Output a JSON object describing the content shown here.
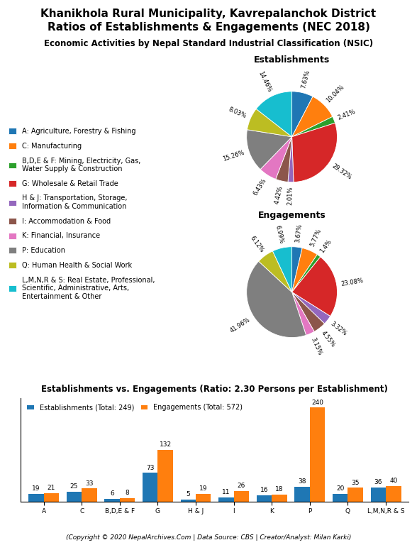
{
  "title": "Khanikhola Rural Municipality, Kavrepalanchok District\nRatios of Establishments & Engagements (NEC 2018)",
  "subtitle": "Economic Activities by Nepal Standard Industrial Classification (NSIC)",
  "annotations": [
    "(Copyright © 2020 NepalArchives.Com | Data Source: CBS | Creator/Analyst: Milan Karki)"
  ],
  "chart_data": [
    {
      "type": "pie",
      "title": "Establishments",
      "categories": [
        "A: Agriculture, Forestry & Fishing",
        "C: Manufacturing",
        "B,D,E & F: Mining, Electricity, Gas,\nWater Supply & Construction",
        "G: Wholesale & Retail Trade",
        "H & J: Transportation, Storage,\nInformation & Communication",
        "I: Accommodation & Food",
        "K: Financial, Insurance",
        "P: Education",
        "Q: Human Health & Social Work",
        "L,M,N,R & S: Real Estate, Professional,\nScientific, Administrative, Arts,\nEntertainment & Other"
      ],
      "values": [
        7.63,
        10.04,
        2.41,
        29.32,
        2.01,
        4.42,
        6.43,
        15.26,
        8.03,
        14.46
      ],
      "value_labels": [
        "7.63%",
        "10.04%",
        "2.41%",
        "29.32%",
        "2.01%",
        "4.42%",
        "6.43%",
        "15.26%",
        "8.03%",
        "14.46%"
      ],
      "data_labels": true,
      "legend": "center left"
    },
    {
      "type": "pie",
      "title": "Engagements",
      "categories": [
        "A: Agriculture, Forestry & Fishing",
        "C: Manufacturing",
        "B,D,E & F: Mining, Electricity, Gas,\nWater Supply & Construction",
        "G: Wholesale & Retail Trade",
        "H & J: Transportation, Storage,\nInformation & Communication",
        "I: Accommodation & Food",
        "K: Financial, Insurance",
        "P: Education",
        "Q: Human Health & Social Work",
        "L,M,N,R & S: Real Estate, Professional,\nScientific, Administrative, Arts,\nEntertainment & Other"
      ],
      "values": [
        3.67,
        5.77,
        1.4,
        23.08,
        3.32,
        4.55,
        3.15,
        41.96,
        6.12,
        6.99
      ],
      "value_labels": [
        "3.67%",
        "5.77%",
        "1.4%",
        "23.08%",
        "3.32%",
        "4.55%",
        "3.15%",
        "41.96%",
        "6.12%",
        "6.99%"
      ],
      "data_labels": true
    },
    {
      "type": "bar",
      "title": "Establishments vs. Engagements (Ratio: 2.30 Persons per Establishment)",
      "categories": [
        "A",
        "C",
        "B,D,E & F",
        "G",
        "H & J",
        "I",
        "K",
        "P",
        "Q",
        "L,M,N,R & S"
      ],
      "series": [
        {
          "name": "Establishments (Total: 249)",
          "values": [
            19,
            25,
            6,
            73,
            5,
            11,
            16,
            38,
            20,
            36
          ]
        },
        {
          "name": "Engagements (Total: 572)",
          "values": [
            21,
            33,
            8,
            132,
            19,
            26,
            18,
            240,
            35,
            40
          ]
        }
      ],
      "ylim": [
        0,
        265
      ],
      "tick_labels": "x",
      "data_labels": true,
      "legend": "upper left"
    }
  ]
}
